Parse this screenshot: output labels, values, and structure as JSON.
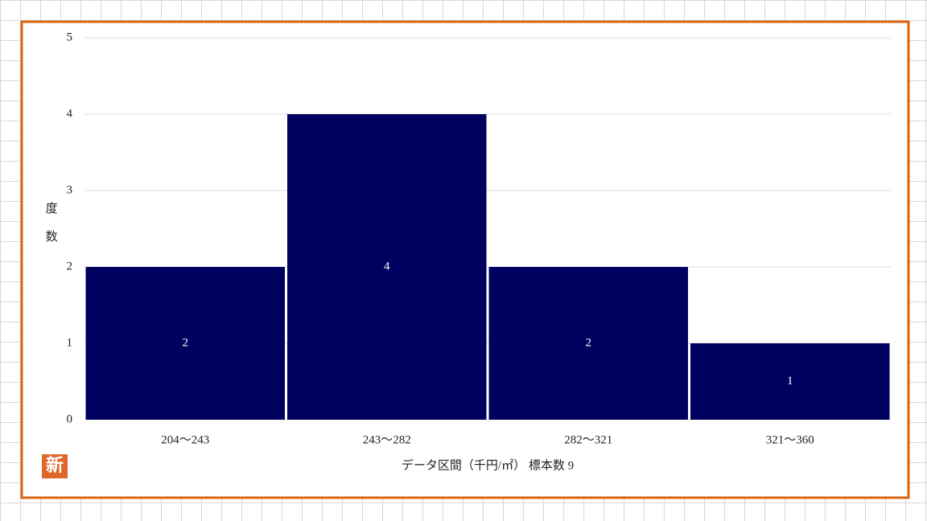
{
  "chart_data": {
    "type": "bar",
    "xlabel": "データ区間（千円/㎡） 標本数 9",
    "ylabel": "度数",
    "badge": "新",
    "categories": [
      "204～243",
      "243～282",
      "282～321",
      "321～360"
    ],
    "values": [
      2,
      4,
      2,
      1
    ],
    "color": "#000060",
    "ylim": [
      0,
      5
    ],
    "yticks": [
      0,
      1,
      2,
      3,
      4,
      5
    ],
    "grid": true
  }
}
